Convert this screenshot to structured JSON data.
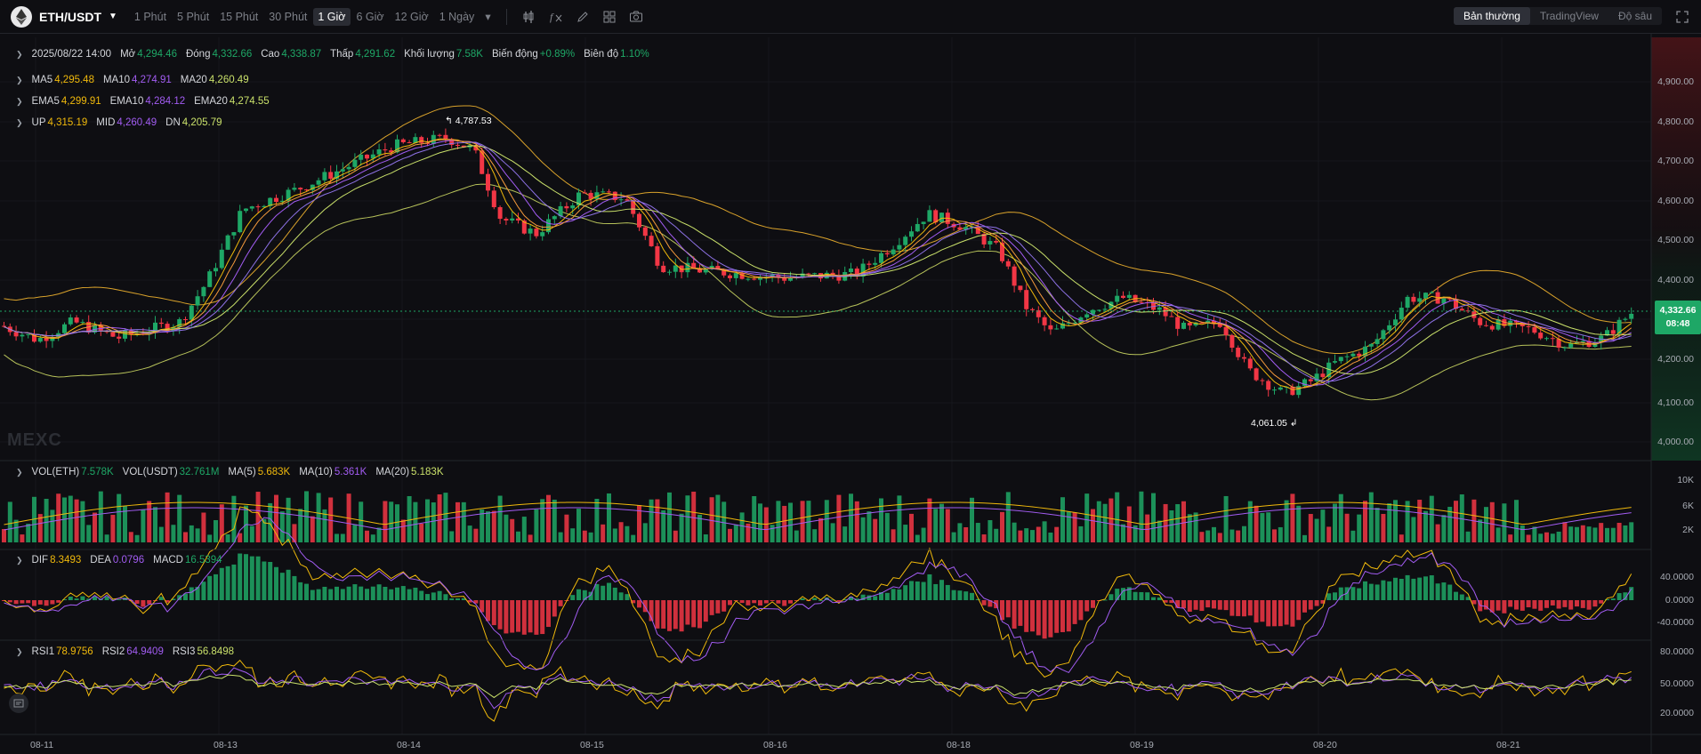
{
  "header": {
    "symbol": "ETH/USDT",
    "timeframes": [
      "1 Phút",
      "5 Phút",
      "15 Phút",
      "30 Phút",
      "1 Giờ",
      "6 Giờ",
      "12 Giờ",
      "1 Ngày"
    ],
    "active_timeframe": "1 Giờ",
    "views": [
      "Bản thường",
      "TradingView",
      "Độ sâu"
    ],
    "active_view": "Bản thường"
  },
  "legend": {
    "date": "2025/08/22 14:00",
    "open_label": "Mở",
    "open": "4,294.46",
    "close_label": "Đóng",
    "close": "4,332.66",
    "high_label": "Cao",
    "high": "4,338.87",
    "low_label": "Thấp",
    "low": "4,291.62",
    "volume_label": "Khối lượng",
    "volume": "7.58K",
    "change_label": "Biến động",
    "change": "+0.89%",
    "amp_label": "Biên độ",
    "amp": "1.10%"
  },
  "ma": {
    "ma5_label": "MA5",
    "ma5": "4,295.48",
    "ma10_label": "MA10",
    "ma10": "4,274.91",
    "ma20_label": "MA20",
    "ma20": "4,260.49"
  },
  "ema": {
    "ema5_label": "EMA5",
    "ema5": "4,299.91",
    "ema10_label": "EMA10",
    "ema10": "4,284.12",
    "ema20_label": "EMA20",
    "ema20": "4,274.55"
  },
  "boll": {
    "up_label": "UP",
    "up": "4,315.19",
    "mid_label": "MID",
    "mid": "4,260.49",
    "dn_label": "DN",
    "dn": "4,205.79"
  },
  "price_axis": [
    "4,900.00",
    "4,800.00",
    "4,700.00",
    "4,600.00",
    "4,500.00",
    "4,400.00",
    "4,300.00",
    "4,200.00",
    "4,100.00",
    "4,000.00"
  ],
  "last_price": "4,332.66",
  "countdown": "08:48",
  "high_marker": "4,787.53",
  "low_marker": "4,061.05",
  "watermark": "MEXC",
  "vol": {
    "eth_label": "VOL(ETH)",
    "eth": "7.578K",
    "usdt_label": "VOL(USDT)",
    "usdt": "32.761M",
    "ma5_label": "MA(5)",
    "ma5": "5.683K",
    "ma10_label": "MA(10)",
    "ma10": "5.361K",
    "ma20_label": "MA(20)",
    "ma20": "5.183K",
    "axis": [
      "10K",
      "6K",
      "2K"
    ]
  },
  "macd": {
    "dif_label": "DIF",
    "dif": "8.3493",
    "dea_label": "DEA",
    "dea": "0.0796",
    "macd_label": "MACD",
    "macd": "16.5394",
    "axis": [
      "40.0000",
      "0.0000",
      "-40.0000"
    ]
  },
  "rsi": {
    "rsi1_label": "RSI1",
    "rsi1": "78.9756",
    "rsi2_label": "RSI2",
    "rsi2": "64.9409",
    "rsi3_label": "RSI3",
    "rsi3": "56.8498",
    "axis": [
      "80.0000",
      "50.0000",
      "20.0000"
    ]
  },
  "dates": [
    "08-11",
    "08-13",
    "08-14",
    "08-15",
    "08-16",
    "08-18",
    "08-19",
    "08-20",
    "08-21"
  ],
  "colors": {
    "up": "#1ea766",
    "down": "#f23645",
    "ma5": "#f0b90b",
    "ma10": "#a25cf2",
    "ma20": "#c9e06a"
  }
}
